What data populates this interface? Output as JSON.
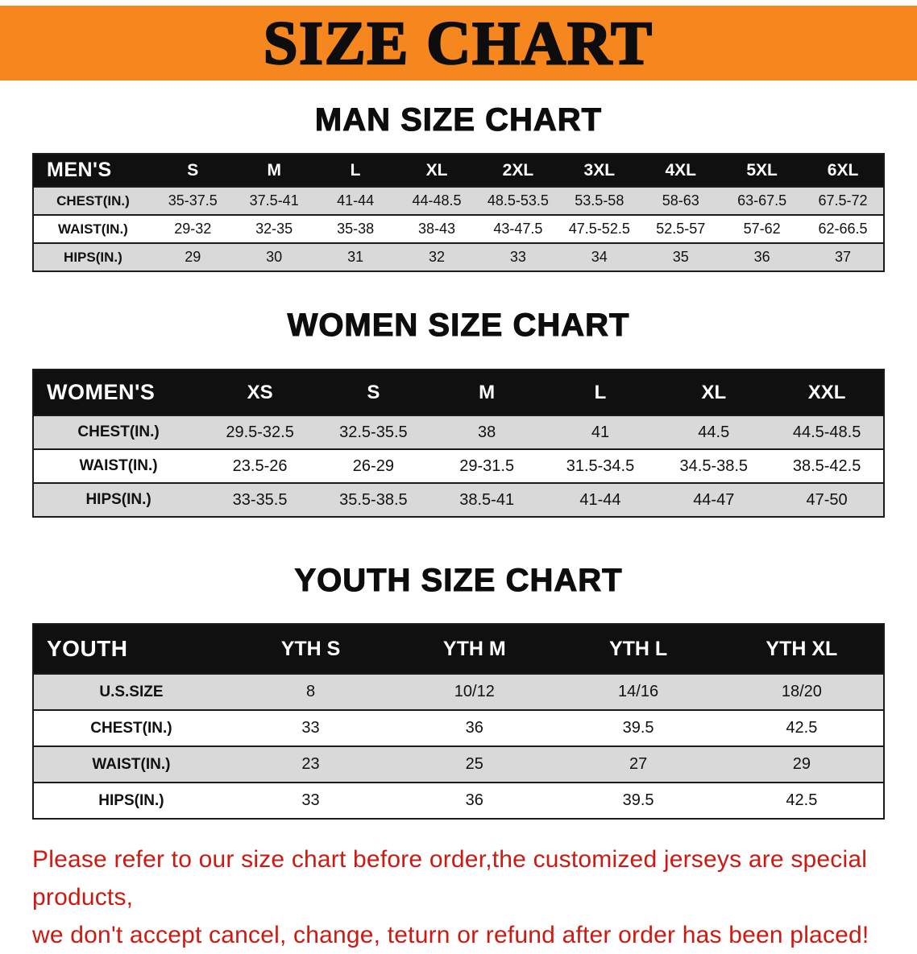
{
  "banner": {
    "title": "SIZE CHART"
  },
  "sections": [
    {
      "id": "men",
      "heading": "MAN SIZE CHART",
      "table": {
        "header": [
          "MEN'S",
          "S",
          "M",
          "L",
          "XL",
          "2XL",
          "3XL",
          "4XL",
          "5XL",
          "6XL"
        ],
        "rows": [
          [
            "CHEST(IN.)",
            "35-37.5",
            "37.5-41",
            "41-44",
            "44-48.5",
            "48.5-53.5",
            "53.5-58",
            "58-63",
            "63-67.5",
            "67.5-72"
          ],
          [
            "WAIST(IN.)",
            "29-32",
            "32-35",
            "35-38",
            "38-43",
            "43-47.5",
            "47.5-52.5",
            "52.5-57",
            "57-62",
            "62-66.5"
          ],
          [
            "HIPS(IN.)",
            "29",
            "30",
            "31",
            "32",
            "33",
            "34",
            "35",
            "36",
            "37"
          ]
        ]
      }
    },
    {
      "id": "women",
      "heading": "WOMEN SIZE CHART",
      "table": {
        "header": [
          "WOMEN'S",
          "XS",
          "S",
          "M",
          "L",
          "XL",
          "XXL"
        ],
        "rows": [
          [
            "CHEST(IN.)",
            "29.5-32.5",
            "32.5-35.5",
            "38",
            "41",
            "44.5",
            "44.5-48.5"
          ],
          [
            "WAIST(IN.)",
            "23.5-26",
            "26-29",
            "29-31.5",
            "31.5-34.5",
            "34.5-38.5",
            "38.5-42.5"
          ],
          [
            "HIPS(IN.)",
            "33-35.5",
            "35.5-38.5",
            "38.5-41",
            "41-44",
            "44-47",
            "47-50"
          ]
        ]
      }
    },
    {
      "id": "youth",
      "heading": "YOUTH SIZE CHART",
      "table": {
        "header": [
          "YOUTH",
          "YTH S",
          "YTH M",
          "YTH L",
          "YTH XL"
        ],
        "rows": [
          [
            "U.S.SIZE",
            "8",
            "10/12",
            "14/16",
            "18/20"
          ],
          [
            "CHEST(IN.)",
            "33",
            "36",
            "39.5",
            "42.5"
          ],
          [
            "WAIST(IN.)",
            "23",
            "25",
            "27",
            "29"
          ],
          [
            "HIPS(IN.)",
            "33",
            "36",
            "39.5",
            "42.5"
          ]
        ]
      }
    }
  ],
  "footer": {
    "line1": "Please refer to our size chart before order,the customized jerseys are special products,",
    "line2": "we don't accept cancel, change, teturn or refund after order has been placed!"
  },
  "colors": {
    "banner_bg": "#f6871f",
    "header_bg": "#101010",
    "row_bg": "#ffffff",
    "row_alt_bg": "#d9d9d9",
    "table_border": "#1a1a1a",
    "footer_text": "#cf1910",
    "title_text": "#0d0d0d"
  }
}
